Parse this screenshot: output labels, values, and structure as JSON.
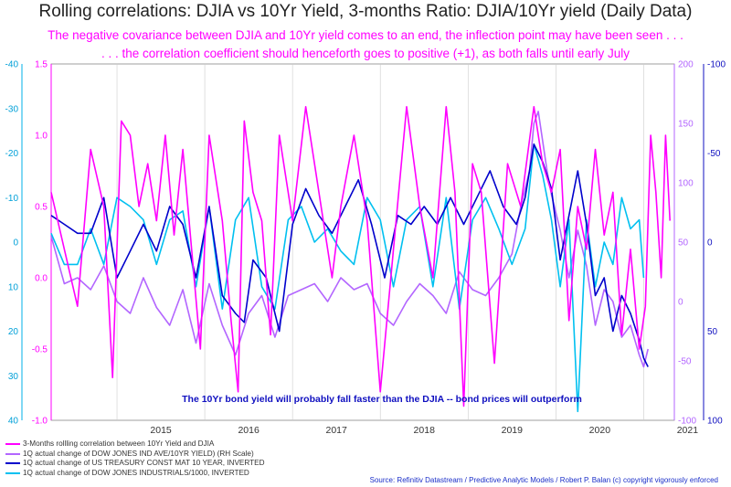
{
  "title": "Rolling correlations: DJIA vs 10Yr Yield, 3-months Ratio: DJIA/10Yr yield (Daily Data)",
  "subtitle_1": "The negative covariance between DJIA and 10Yr yield comes to an end, the inflection point may have been seen . . .",
  "subtitle_2": ". . . the correlation coefficient should henceforth goes to positive (+1), as both falls until early July",
  "annotation": "The 10Yr bond yield will probably fall faster than the DJIA -- bond prices will outperform",
  "source": "Source: Refinitiv Datastream / Predictive Analytic Models /  Robert P. Balan (c)  copyright vigorously enforced",
  "colors": {
    "magenta": "#ff00ff",
    "purple": "#b366ff",
    "navy": "#0000cc",
    "cyan": "#00c0f0",
    "axis_blue": "#1010c0",
    "axis_cyan": "#00b0e8"
  },
  "legend": [
    {
      "label": "3-Months rollling correlation between 10Yr Yield and DJIA",
      "color": "#ff00ff"
    },
    {
      "label": "1Q actual change of DOW JONES IND AVE/10YR YIELD) (RH Scale)",
      "color": "#b366ff"
    },
    {
      "label": "1Q actual change of US TREASURY CONST MAT 10 YEAR, INVERTED",
      "color": "#0000cc"
    },
    {
      "label": "1Q actual change of DOW JONES INDUSTRIALS/1000, INVERTED",
      "color": "#00c0f0"
    }
  ],
  "axes": {
    "left_outer": {
      "ticks": [
        "-40",
        "-30",
        "-20",
        "-10",
        "0",
        "10",
        "20",
        "30",
        "40"
      ]
    },
    "left_inner": {
      "ticks": [
        "1.5",
        "1.0",
        "0.5",
        "0.0",
        "-0.5",
        "-1.0"
      ]
    },
    "right_inner": {
      "ticks": [
        "200",
        "150",
        "100",
        "50",
        "0",
        "-50",
        "-100"
      ]
    },
    "right_outer": {
      "ticks": [
        "-100",
        "-50",
        "0",
        "50",
        "100"
      ]
    },
    "x": {
      "ticks": [
        "2015",
        "2016",
        "2017",
        "2018",
        "2019",
        "2020",
        "2021"
      ]
    }
  },
  "chart_data": {
    "type": "line",
    "x_range": [
      2014.25,
      2021.35
    ],
    "series": [
      {
        "name": "3-Months rollling correlation between 10Yr Yield and DJIA",
        "axis": "left_inner",
        "ylim": [
          -1.0,
          1.5
        ],
        "x": [
          2014.25,
          2014.4,
          2014.55,
          2014.7,
          2014.85,
          2014.95,
          2015.05,
          2015.15,
          2015.25,
          2015.35,
          2015.45,
          2015.55,
          2015.65,
          2015.75,
          2015.85,
          2015.95,
          2016.05,
          2016.2,
          2016.3,
          2016.38,
          2016.45,
          2016.55,
          2016.65,
          2016.75,
          2016.85,
          2017.0,
          2017.15,
          2017.3,
          2017.45,
          2017.55,
          2017.7,
          2017.85,
          2018.0,
          2018.15,
          2018.3,
          2018.45,
          2018.6,
          2018.75,
          2018.85,
          2018.95,
          2019.05,
          2019.15,
          2019.3,
          2019.45,
          2019.6,
          2019.75,
          2019.85,
          2019.95,
          2020.05,
          2020.15,
          2020.25,
          2020.35,
          2020.45,
          2020.55,
          2020.65,
          2020.75,
          2020.85,
          2020.95,
          2021.02,
          2021.08,
          2021.14,
          2021.2,
          2021.25,
          2021.3
        ],
        "values": [
          0.6,
          0.2,
          -0.2,
          0.9,
          0.5,
          -0.7,
          1.1,
          1.0,
          0.5,
          0.8,
          0.4,
          1.0,
          0.3,
          0.9,
          0.2,
          -0.5,
          1.0,
          0.4,
          -0.3,
          -0.8,
          1.1,
          0.6,
          0.4,
          -0.4,
          1.0,
          0.4,
          1.2,
          0.6,
          0.0,
          0.5,
          1.0,
          0.4,
          -0.8,
          0.2,
          1.2,
          0.5,
          0.0,
          1.2,
          0.6,
          -0.9,
          0.8,
          0.6,
          -0.6,
          0.8,
          0.5,
          1.2,
          0.8,
          0.6,
          0.9,
          -0.3,
          0.5,
          0.2,
          0.9,
          0.3,
          0.6,
          -0.4,
          0.2,
          -0.5,
          -0.2,
          1.0,
          0.6,
          0.0,
          1.0,
          0.4
        ]
      },
      {
        "name": "1Q actual change of DOW JONES IND AVE/10YR YIELD) (RH Scale)",
        "axis": "right_inner",
        "ylim": [
          -100,
          200
        ],
        "x": [
          2014.25,
          2014.4,
          2014.55,
          2014.7,
          2014.85,
          2015.0,
          2015.15,
          2015.3,
          2015.45,
          2015.6,
          2015.75,
          2015.9,
          2016.05,
          2016.2,
          2016.35,
          2016.5,
          2016.65,
          2016.8,
          2016.95,
          2017.1,
          2017.25,
          2017.4,
          2017.55,
          2017.7,
          2017.85,
          2018.0,
          2018.15,
          2018.3,
          2018.45,
          2018.6,
          2018.75,
          2018.9,
          2019.05,
          2019.2,
          2019.35,
          2019.5,
          2019.6,
          2019.7,
          2019.75,
          2019.8,
          2019.85,
          2019.9,
          2019.95,
          2020.05,
          2020.15,
          2020.25,
          2020.35,
          2020.45,
          2020.55,
          2020.65,
          2020.75,
          2020.85,
          2020.95,
          2021.0,
          2021.05
        ],
        "values": [
          55,
          15,
          20,
          10,
          30,
          0,
          -10,
          20,
          -5,
          -20,
          10,
          -35,
          15,
          -20,
          -45,
          -10,
          5,
          -30,
          5,
          10,
          15,
          0,
          20,
          10,
          15,
          -10,
          -20,
          0,
          15,
          5,
          -10,
          25,
          10,
          5,
          20,
          40,
          80,
          110,
          150,
          160,
          135,
          110,
          90,
          60,
          20,
          60,
          30,
          -20,
          10,
          0,
          -30,
          -20,
          -45,
          -55,
          -40
        ]
      },
      {
        "name": "1Q actual change of US TREASURY CONST MAT 10 YEAR, INVERTED",
        "axis": "right_outer",
        "ylim": [
          100,
          -100
        ],
        "x": [
          2014.25,
          2014.4,
          2014.55,
          2014.7,
          2014.85,
          2015.0,
          2015.15,
          2015.3,
          2015.45,
          2015.6,
          2015.75,
          2015.9,
          2016.05,
          2016.2,
          2016.35,
          2016.45,
          2016.55,
          2016.7,
          2016.85,
          2017.0,
          2017.15,
          2017.3,
          2017.45,
          2017.6,
          2017.75,
          2017.9,
          2018.05,
          2018.2,
          2018.35,
          2018.5,
          2018.65,
          2018.8,
          2018.95,
          2019.1,
          2019.25,
          2019.4,
          2019.55,
          2019.65,
          2019.75,
          2019.85,
          2019.95,
          2020.05,
          2020.15,
          2020.25,
          2020.35,
          2020.45,
          2020.55,
          2020.65,
          2020.75,
          2020.85,
          2020.95,
          2021.0,
          2021.05
        ],
        "values": [
          -15,
          -10,
          -5,
          -5,
          -25,
          20,
          5,
          -10,
          5,
          -20,
          -10,
          20,
          -20,
          30,
          40,
          45,
          10,
          20,
          50,
          -10,
          -30,
          -15,
          -5,
          -20,
          -35,
          -10,
          20,
          -15,
          -10,
          -20,
          -10,
          -25,
          -10,
          -25,
          -40,
          -20,
          -10,
          -25,
          -55,
          -45,
          -30,
          10,
          -15,
          -40,
          -10,
          30,
          20,
          50,
          30,
          40,
          55,
          65,
          70
        ]
      },
      {
        "name": "1Q actual change of DOW JONES INDUSTRIALS/1000, INVERTED",
        "axis": "left_outer",
        "ylim": [
          -40,
          40
        ],
        "x": [
          2014.25,
          2014.4,
          2014.55,
          2014.7,
          2014.85,
          2015.0,
          2015.15,
          2015.3,
          2015.45,
          2015.6,
          2015.75,
          2015.9,
          2016.05,
          2016.2,
          2016.35,
          2016.5,
          2016.65,
          2016.8,
          2016.95,
          2017.1,
          2017.25,
          2017.4,
          2017.55,
          2017.7,
          2017.85,
          2018.0,
          2018.15,
          2018.3,
          2018.45,
          2018.6,
          2018.75,
          2018.9,
          2019.05,
          2019.2,
          2019.35,
          2019.5,
          2019.65,
          2019.75,
          2019.85,
          2019.95,
          2020.05,
          2020.15,
          2020.25,
          2020.35,
          2020.45,
          2020.55,
          2020.65,
          2020.75,
          2020.85,
          2020.95,
          2021.0
        ],
        "values": [
          -2,
          5,
          5,
          -3,
          5,
          -10,
          -8,
          -5,
          5,
          -5,
          -7,
          10,
          -8,
          15,
          -5,
          -10,
          10,
          15,
          -5,
          -8,
          0,
          -3,
          2,
          5,
          -10,
          -5,
          10,
          -5,
          -8,
          10,
          -10,
          15,
          -5,
          -10,
          -3,
          5,
          -3,
          -22,
          -15,
          -5,
          10,
          -5,
          38,
          -5,
          10,
          0,
          5,
          -10,
          -3,
          -5,
          8
        ]
      }
    ]
  }
}
